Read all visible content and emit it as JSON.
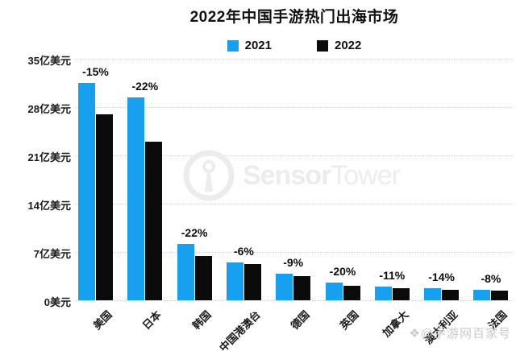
{
  "title": "2022年中国手游热门出海市场",
  "watermark": {
    "brand_bold": "Sensor",
    "brand_light": "Tower"
  },
  "badge": {
    "icon": "❖",
    "text": "@手游网百家号"
  },
  "colors": {
    "series_2021": "#18a0f0",
    "series_2022": "#0b0b0b",
    "grid": "#d2d2d2",
    "watermark_gray": "#ececec"
  },
  "chart_data": {
    "type": "bar",
    "title": "2022年中国手游热门出海市场",
    "categories": [
      "美国",
      "日本",
      "韩国",
      "中国港澳台",
      "德国",
      "英国",
      "加拿大",
      "澳大利亚",
      "法国"
    ],
    "series": [
      {
        "name": "2021",
        "color": "#18a0f0",
        "values": [
          31.5,
          29.4,
          8.2,
          5.5,
          3.9,
          2.6,
          2.0,
          1.8,
          1.5
        ]
      },
      {
        "name": "2022",
        "color": "#0b0b0b",
        "values": [
          26.9,
          23.0,
          6.4,
          5.2,
          3.5,
          2.1,
          1.8,
          1.5,
          1.4
        ]
      }
    ],
    "bar_labels": [
      "-15%",
      "-22%",
      "-22%",
      "-6%",
      "-9%",
      "-20%",
      "-11%",
      "-14%",
      "-8%"
    ],
    "ylabel": "亿美元",
    "ylim": [
      0,
      35
    ],
    "y_ticks": [
      {
        "label": "35亿美元",
        "value": 35
      },
      {
        "label": "28亿美元",
        "value": 28
      },
      {
        "label": "21亿美元",
        "value": 21
      },
      {
        "label": "14亿美元",
        "value": 14
      },
      {
        "label": "7亿美元",
        "value": 7
      },
      {
        "label": "0美元",
        "value": 0
      }
    ],
    "grid": "horizontal-dotted",
    "legend_position": "top-center"
  }
}
